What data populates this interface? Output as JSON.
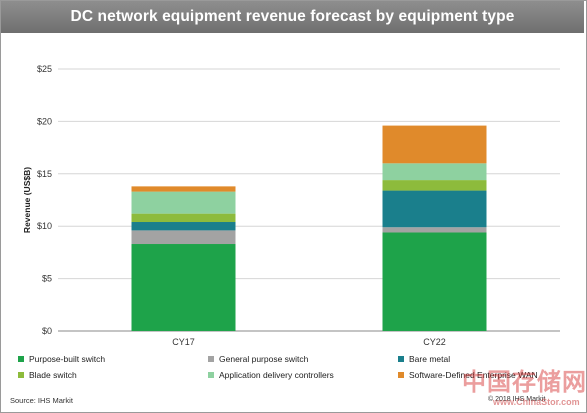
{
  "chart_data": {
    "type": "bar",
    "stacked": true,
    "title": "DC network equipment revenue forecast by equipment type",
    "ylabel": "Revenue (US$B)",
    "xlabel": "",
    "categories": [
      "CY17",
      "CY22"
    ],
    "ylim": [
      0,
      25
    ],
    "yticks": [
      0,
      5,
      10,
      15,
      20,
      25
    ],
    "ytick_labels": [
      "$0",
      "$5",
      "$10",
      "$15",
      "$20",
      "$25"
    ],
    "grid": true,
    "legend_position": "bottom",
    "series": [
      {
        "name": "Purpose-built switch",
        "color": "#1ea34a",
        "values": [
          8.3,
          9.4
        ]
      },
      {
        "name": "General purpose switch",
        "color": "#a3a3a3",
        "values": [
          1.3,
          0.5
        ]
      },
      {
        "name": "Bare metal",
        "color": "#1a7f8c",
        "values": [
          0.8,
          3.5
        ]
      },
      {
        "name": "Blade switch",
        "color": "#8dbb3c",
        "values": [
          0.8,
          1.0
        ]
      },
      {
        "name": "Application delivery controllers",
        "color": "#8ed1a0",
        "values": [
          2.1,
          1.6
        ]
      },
      {
        "name": "Software-Defined Enterprise WAN",
        "color": "#e08a2b",
        "values": [
          0.5,
          3.6
        ]
      }
    ]
  },
  "footer": {
    "source": "Source: IHS Markit",
    "copyright": "© 2018 IHS Markit"
  },
  "watermark": {
    "text": "中国存储网",
    "url": "www.ChinaStor.com"
  }
}
